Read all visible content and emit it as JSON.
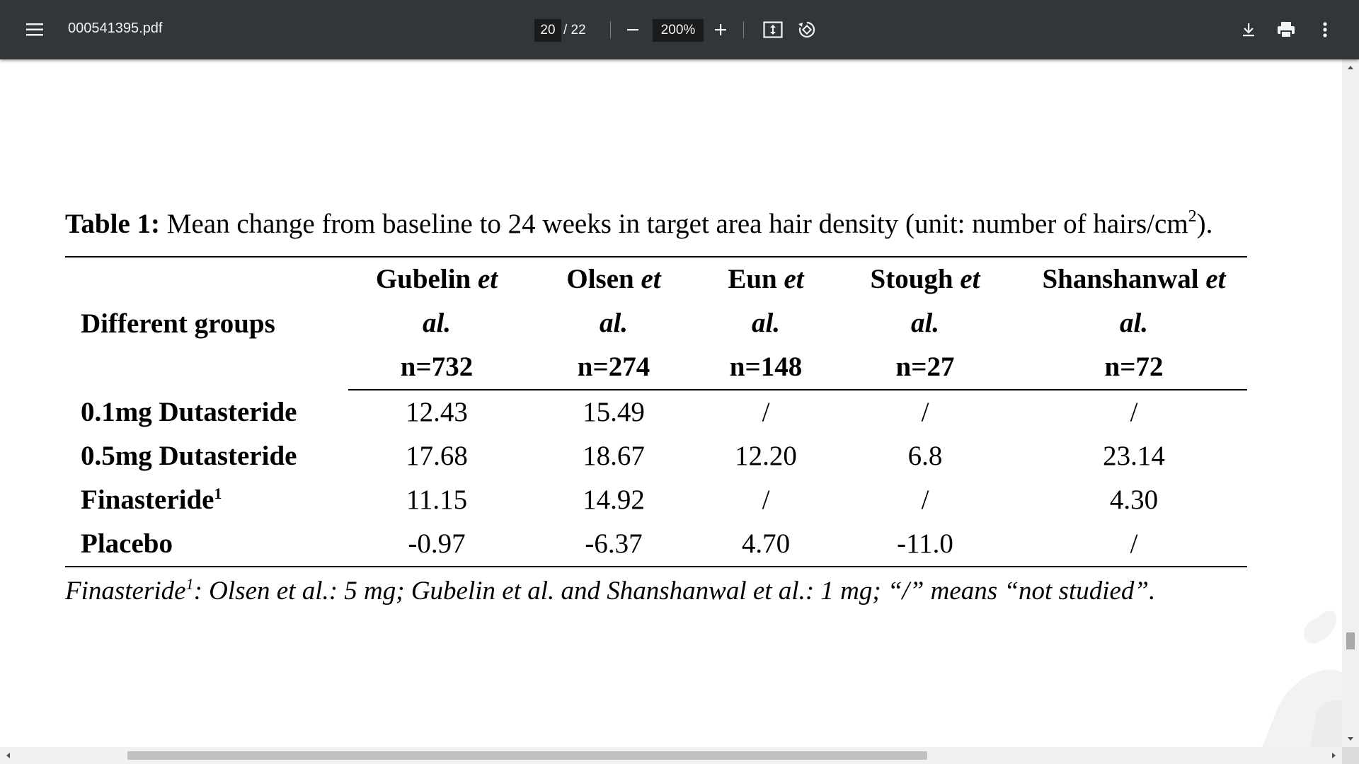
{
  "toolbar": {
    "file_name": "000541395.pdf",
    "current_page": "20",
    "total_pages": "/ 22",
    "zoom": "200%",
    "icons": [
      "menu-icon",
      "zoom-out-icon",
      "zoom-in-icon",
      "fit-page-icon",
      "rotate-icon",
      "download-icon",
      "print-icon",
      "more-icon"
    ]
  },
  "document": {
    "caption_label": "Table 1:",
    "caption_text": " Mean change from baseline to 24 weeks in target area hair density (unit: number of hairs/cm",
    "caption_sup": "2",
    "caption_end": ").",
    "table": {
      "group_header": "Different groups",
      "columns": [
        {
          "name": "Gubelin",
          "etal1": "et",
          "etal2": "al.",
          "n": "n=732"
        },
        {
          "name": "Olsen",
          "etal1": "et",
          "etal2": "al.",
          "n": "n=274"
        },
        {
          "name": "Eun",
          "etal1": "et",
          "etal2": "al.",
          "n": "n=148"
        },
        {
          "name": "Stough",
          "etal1": "et",
          "etal2": "al.",
          "n": "n=27"
        },
        {
          "name": "Shanshanwal",
          "etal1": "et",
          "etal2": "al.",
          "n": "n=72"
        }
      ],
      "rows": [
        {
          "label": "0.1mg Dutasteride",
          "sup": "",
          "values": [
            "12.43",
            "15.49",
            "/",
            "/",
            "/"
          ]
        },
        {
          "label": "0.5mg Dutasteride",
          "sup": "",
          "values": [
            "17.68",
            "18.67",
            "12.20",
            "6.8",
            "23.14"
          ]
        },
        {
          "label": "Finasteride",
          "sup": "1",
          "values": [
            "11.15",
            "14.92",
            "/",
            "/",
            "4.30"
          ]
        },
        {
          "label": "Placebo",
          "sup": "",
          "values": [
            "-0.97",
            "-6.37",
            "4.70",
            "-11.0",
            "/"
          ]
        }
      ]
    },
    "note_a": "Finasteride",
    "note_sup": "1",
    "note_b": ": Olsen et al.: 5 mg; Gubelin et al. and Shanshanwal et al.: 1 mg; “/” means “not studied”."
  },
  "colors": {
    "toolbar_bg": "#323639",
    "toolbar_text": "#f1f3f4",
    "input_bg": "#191b1c",
    "page_bg": "#ffffff"
  }
}
